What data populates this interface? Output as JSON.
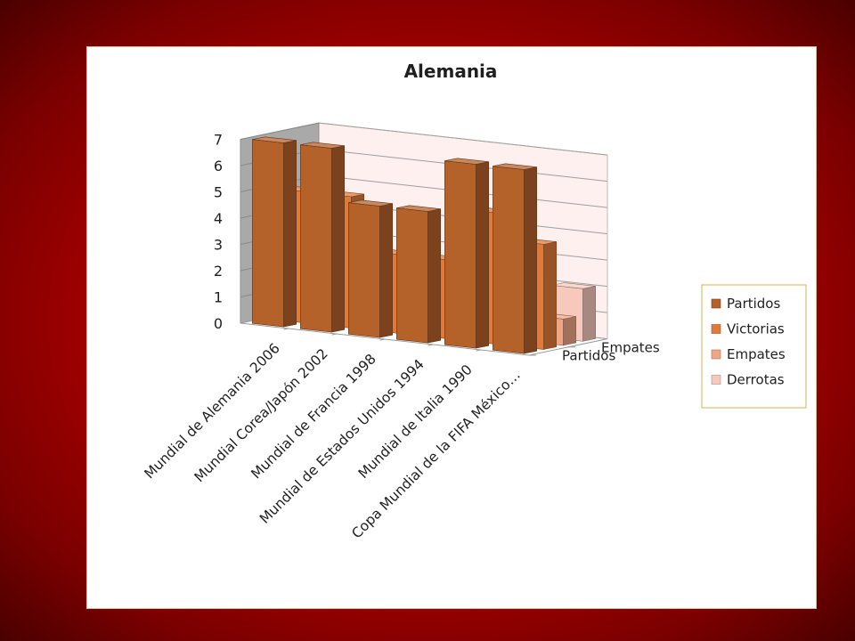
{
  "chart_data": {
    "type": "bar",
    "subtype": "3d-column",
    "title": "Alemania",
    "categories": [
      "Mundial de Alemania 2006",
      "Mundial Corea/Japón 2002",
      "Mundial de Francia 1998",
      "Mundial de Estados Unidos 1994",
      "Mundial de Italia 1990",
      "Copa Mundial de la FIFA México…"
    ],
    "series": [
      {
        "name": "Partidos",
        "values": [
          7,
          7,
          5,
          5,
          7,
          7
        ],
        "color": "#b5612a"
      },
      {
        "name": "Victorias",
        "values": [
          5,
          5,
          3,
          3,
          5,
          4
        ],
        "color": "#e07a3a"
      },
      {
        "name": "Empates",
        "values": [
          1,
          0,
          1,
          2,
          0,
          1
        ],
        "color": "#f0a686"
      },
      {
        "name": "Derrotas",
        "values": [
          1,
          2,
          1,
          0,
          2,
          2
        ],
        "color": "#f7c9bd"
      }
    ],
    "depth_axis_labels": [
      "Partidos",
      "Empates"
    ],
    "yticks": [
      "0",
      "1",
      "2",
      "3",
      "4",
      "5",
      "6",
      "7"
    ],
    "ylim": [
      0,
      7
    ],
    "grid": true,
    "legend": "right"
  }
}
